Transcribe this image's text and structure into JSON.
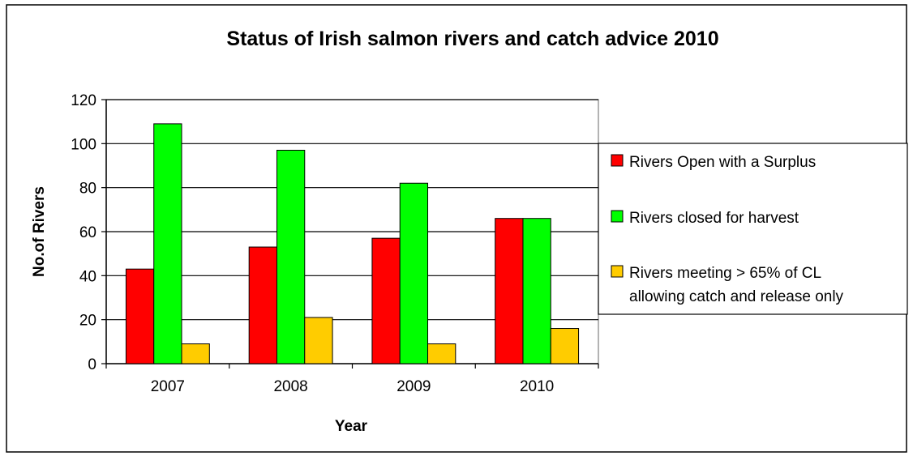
{
  "chart_data": {
    "type": "bar",
    "title": "Status of Irish salmon rivers and catch advice 2010",
    "xlabel": "Year",
    "ylabel": "No.of Rivers",
    "categories": [
      "2007",
      "2008",
      "2009",
      "2010"
    ],
    "ylim": [
      0,
      120
    ],
    "yticks": [
      0,
      20,
      40,
      60,
      80,
      100,
      120
    ],
    "grid": true,
    "legend_position": "right",
    "series": [
      {
        "name": "Rivers Open with a Surplus",
        "color": "#ff0000",
        "values": [
          43,
          53,
          57,
          66
        ]
      },
      {
        "name": "Rivers closed for harvest",
        "color": "#00ff00",
        "values": [
          109,
          97,
          82,
          66
        ]
      },
      {
        "name": "Rivers meeting > 65% of CL allowing catch and release only",
        "legend_lines": [
          "Rivers meeting > 65% of CL",
          "allowing catch and release only"
        ],
        "color": "#ffcc00",
        "values": [
          9,
          21,
          9,
          16
        ]
      }
    ]
  }
}
